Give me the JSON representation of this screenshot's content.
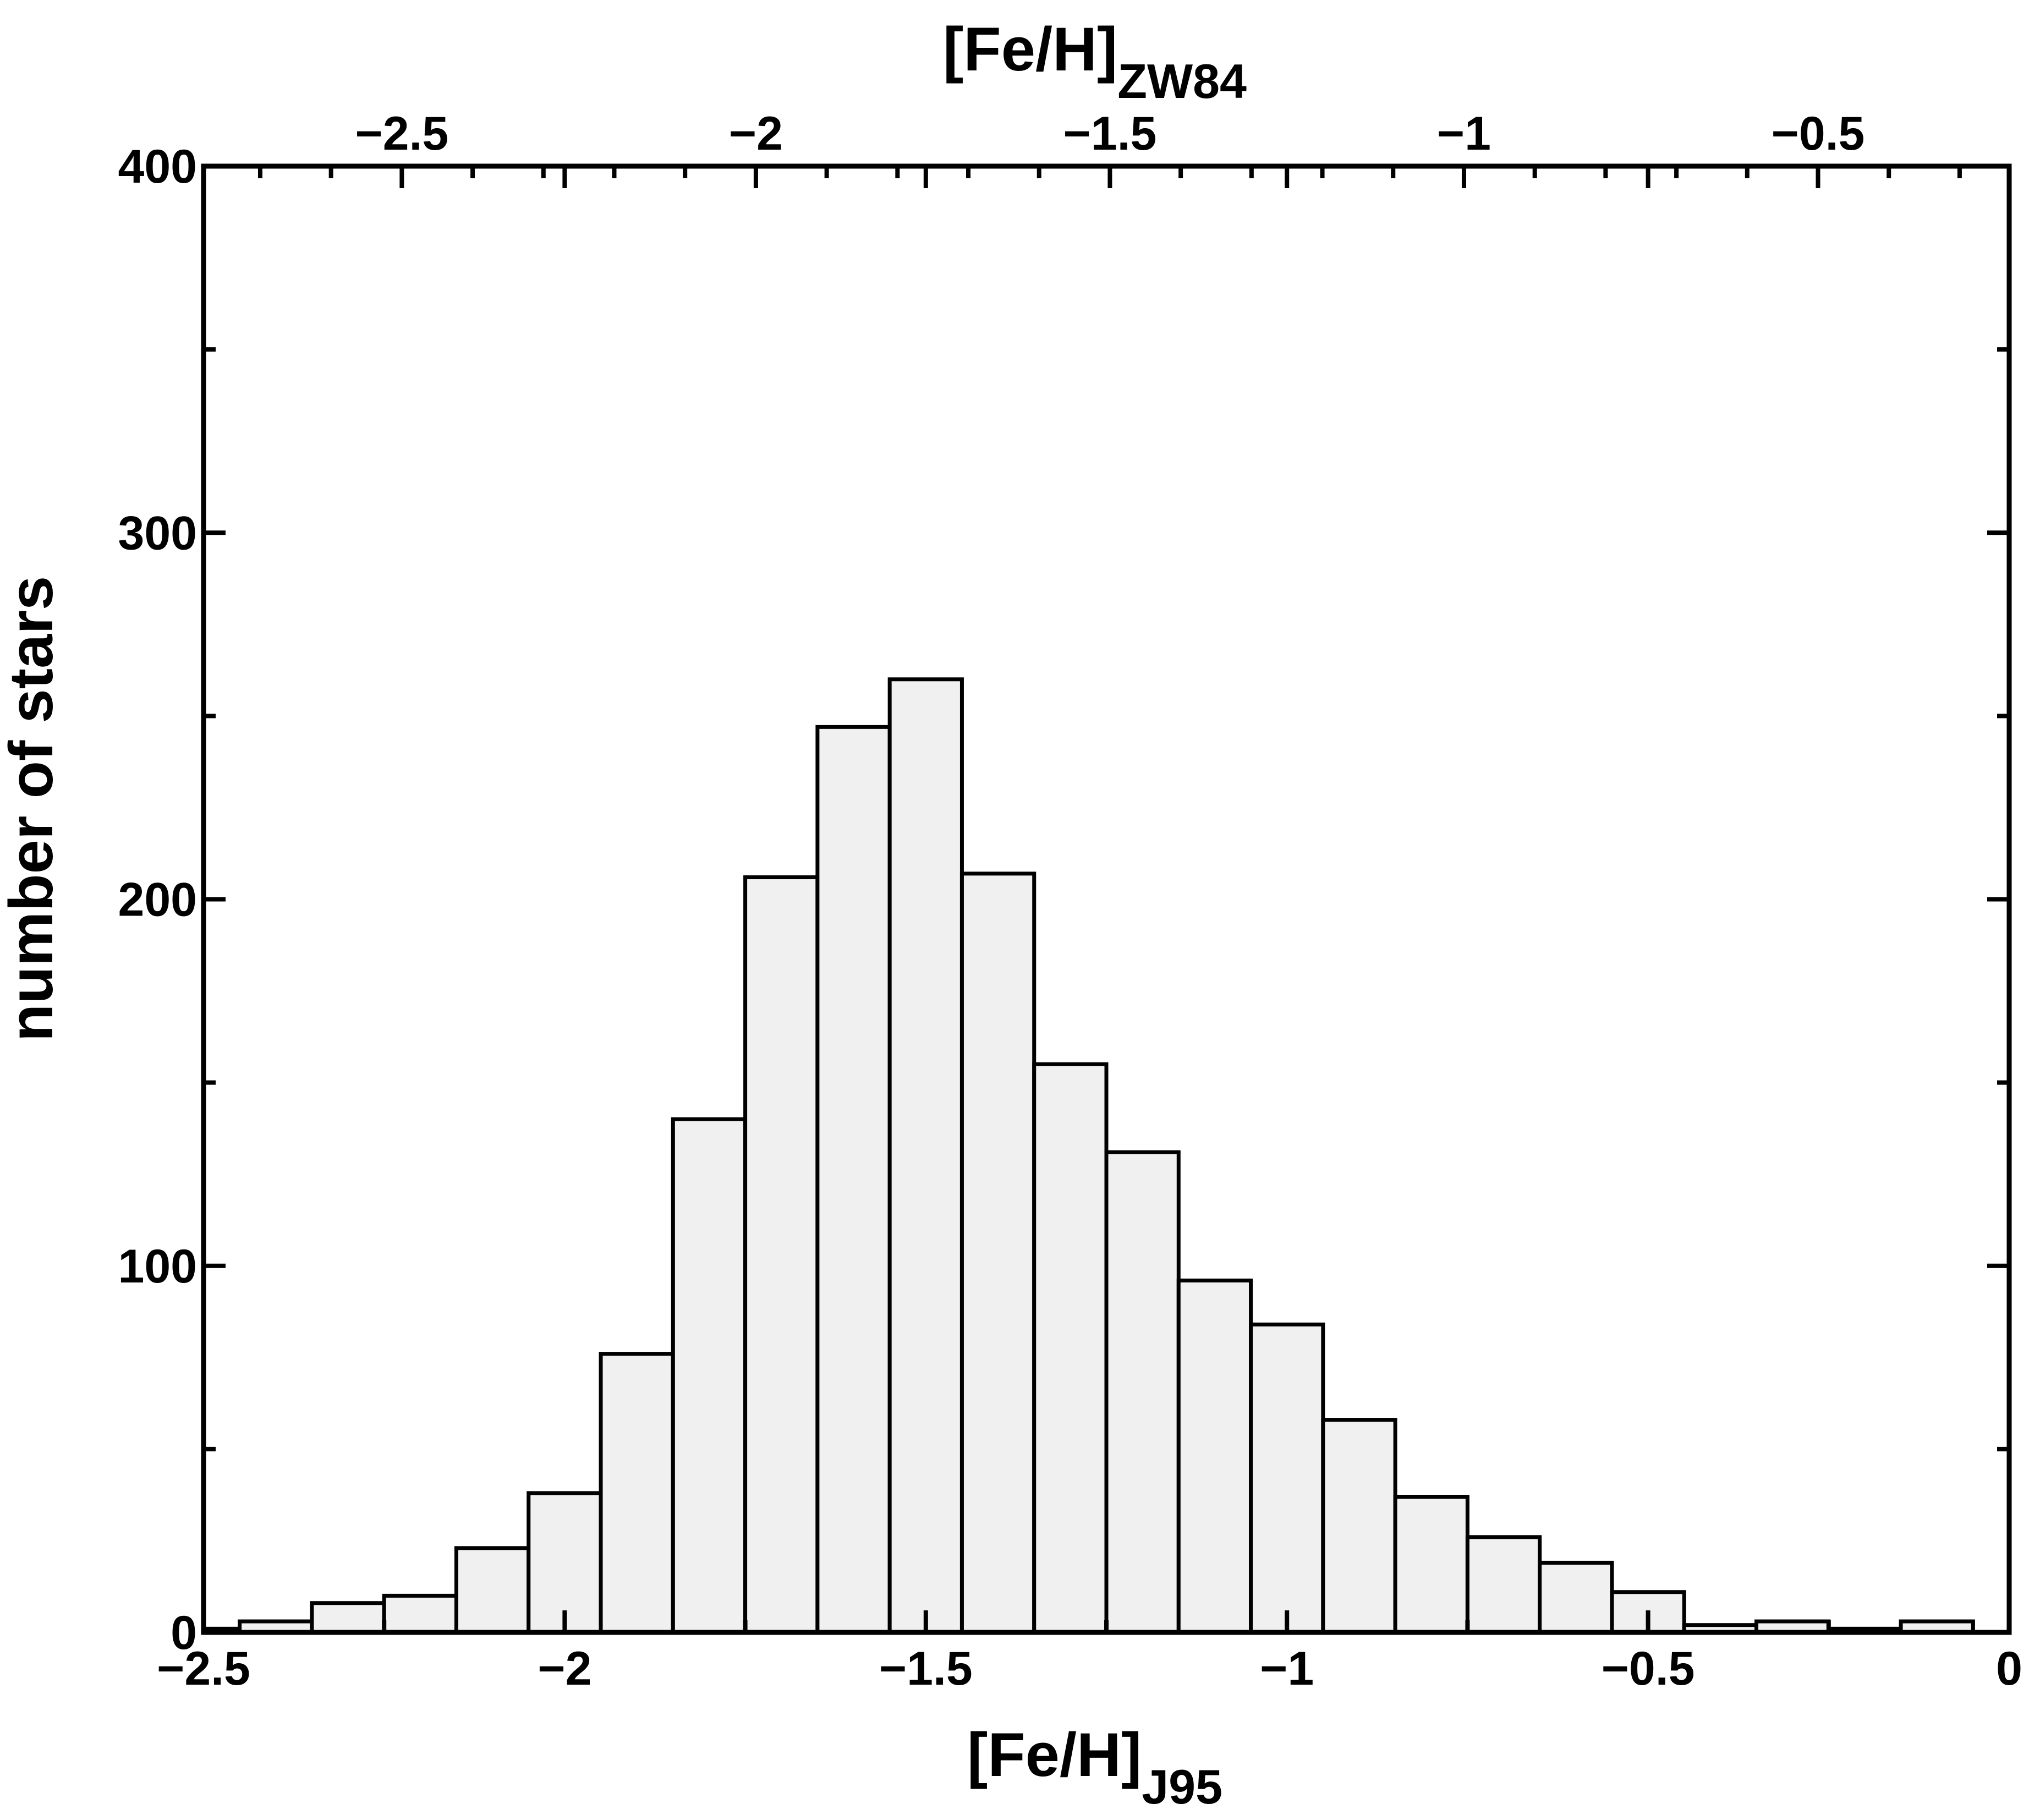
{
  "chart_data": {
    "type": "bar",
    "xlabel_main": "[Fe/H]",
    "xlabel_sub": "J95",
    "x2label_main": "[Fe/H]",
    "x2label_sub": "ZW84",
    "ylabel": "number of stars",
    "xlim": [
      -2.5,
      0
    ],
    "ylim": [
      0,
      400
    ],
    "x2lim": [
      -2.78,
      -0.23
    ],
    "grid": false,
    "bar_fill": "#f0f0f0",
    "bar_stroke": "#000000",
    "bin_width": 0.1,
    "bin_starts": [
      -2.55,
      -2.45,
      -2.35,
      -2.25,
      -2.15,
      -2.05,
      -1.95,
      -1.85,
      -1.75,
      -1.65,
      -1.55,
      -1.45,
      -1.35,
      -1.25,
      -1.15,
      -1.05,
      -0.95,
      -0.85,
      -0.75,
      -0.65,
      -0.55,
      -0.45,
      -0.35,
      -0.25,
      -0.15,
      -0.05
    ],
    "values": [
      1,
      3,
      8,
      10,
      23,
      38,
      76,
      140,
      206,
      247,
      260,
      207,
      155,
      131,
      96,
      84,
      58,
      37,
      26,
      19,
      11,
      2,
      3,
      1,
      3,
      0
    ],
    "x_ticks_major": [
      -2.5,
      -2.0,
      -1.5,
      -1.0,
      -0.5,
      0
    ],
    "x_tick_labels": [
      "−2.5",
      "−2",
      "−1.5",
      "−1",
      "−0.5",
      "0"
    ],
    "x_ticks_minor": [
      -2.25,
      -1.75,
      -1.25,
      -0.75,
      -0.25
    ],
    "x2_ticks_major": [
      -2.5,
      -2.0,
      -1.5,
      -1.0,
      -0.5
    ],
    "x2_tick_labels": [
      "−2.5",
      "−2",
      "−1.5",
      "−1",
      "−0.5"
    ],
    "x2_minor_step": 0.1,
    "y_ticks_major": [
      0,
      100,
      200,
      300,
      400
    ],
    "y_tick_labels": [
      "0",
      "100",
      "200",
      "300",
      "400"
    ],
    "y_ticks_minor": [
      50,
      150,
      250,
      350
    ]
  }
}
